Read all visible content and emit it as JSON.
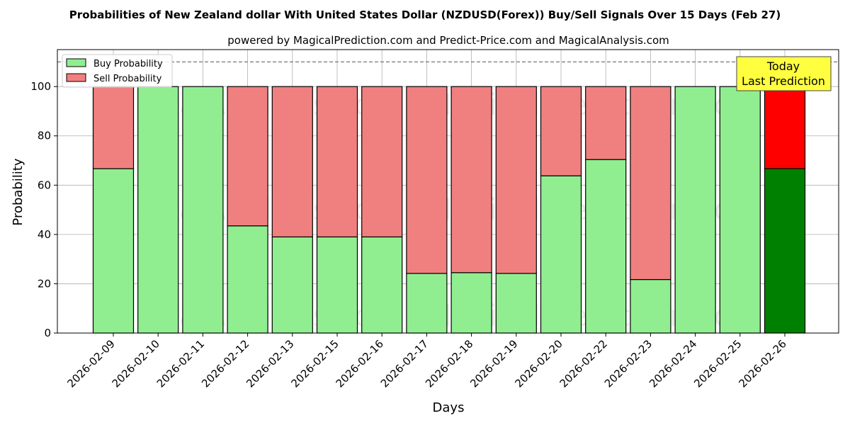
{
  "chart_data": {
    "type": "bar",
    "stacked": true,
    "title": "Probabilities of New Zealand dollar With United States Dollar (NZDUSD(Forex)) Buy/Sell Signals Over 15 Days (Feb 27)",
    "subtitle": "powered by MagicalPrediction.com and Predict-Price.com and MagicalAnalysis.com",
    "xlabel": "Days",
    "ylabel": "Probability",
    "ylim": [
      0,
      115
    ],
    "yticks": [
      0,
      20,
      40,
      60,
      80,
      100
    ],
    "grid": true,
    "legend_position": "top-left",
    "reference_line": 110,
    "categories": [
      "2026-02-09",
      "2026-02-10",
      "2026-02-11",
      "2026-02-12",
      "2026-02-13",
      "2026-02-15",
      "2026-02-16",
      "2026-02-17",
      "2026-02-18",
      "2026-02-19",
      "2026-02-20",
      "2026-02-22",
      "2026-02-23",
      "2026-02-24",
      "2026-02-25",
      "2026-02-26"
    ],
    "series": [
      {
        "name": "Buy Probability",
        "color": "#90ee90",
        "highlight_color": "#008000",
        "values": [
          66.7,
          100,
          100,
          43.5,
          39,
          39,
          39,
          24.2,
          24.5,
          24.2,
          63.8,
          70.4,
          21.7,
          100,
          100,
          66.7
        ]
      },
      {
        "name": "Sell Probability",
        "color": "#f08080",
        "highlight_color": "#ff0000",
        "values": [
          33.3,
          0,
          0,
          56.5,
          61,
          61,
          61,
          75.8,
          75.5,
          75.8,
          36.2,
          29.6,
          78.3,
          0,
          0,
          33.3
        ]
      }
    ],
    "annotation": {
      "line1": "Today",
      "line2": "Last Prediction",
      "color": "#ffff40"
    },
    "watermarks": [
      "MagicalAnalysis.com",
      "MagicalPrediction.com"
    ]
  }
}
